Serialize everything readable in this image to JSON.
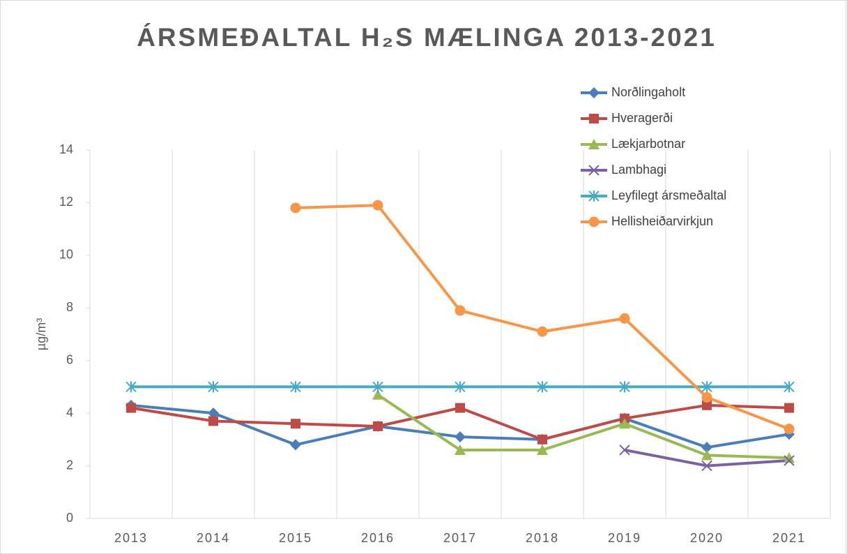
{
  "chart_data": {
    "type": "line",
    "title": "ÁRSMEÐALTAL H₂S MÆLINGA 2013-2021",
    "y_label": "µg/m³",
    "categories": [
      "2013",
      "2014",
      "2015",
      "2016",
      "2017",
      "2018",
      "2019",
      "2020",
      "2021"
    ],
    "ylim": [
      0,
      14
    ],
    "yticks": [
      0,
      2,
      4,
      6,
      8,
      10,
      12,
      14
    ],
    "grid": true,
    "legend": "top-right",
    "series": [
      {
        "name": "Norðlingaholt",
        "color": "#4a7ebb",
        "marker": "diamond",
        "values": [
          4.3,
          4.0,
          2.8,
          3.5,
          3.1,
          3.0,
          3.8,
          2.7,
          3.2
        ]
      },
      {
        "name": "Hveragerði",
        "color": "#be4b48",
        "marker": "square",
        "values": [
          4.2,
          3.7,
          3.6,
          3.5,
          4.2,
          3.0,
          3.8,
          4.3,
          4.2
        ]
      },
      {
        "name": "Lækjarbotnar",
        "color": "#98b954",
        "marker": "triangle",
        "values": [
          null,
          null,
          null,
          4.7,
          2.6,
          2.6,
          3.6,
          2.4,
          2.3
        ]
      },
      {
        "name": "Lambhagi",
        "color": "#7d60a0",
        "marker": "x",
        "values": [
          null,
          null,
          null,
          null,
          null,
          null,
          2.6,
          2.0,
          2.2
        ]
      },
      {
        "name": "Leyfilegt ársmeðaltal",
        "color": "#46aac5",
        "marker": "star",
        "values": [
          5,
          5,
          5,
          5,
          5,
          5,
          5,
          5,
          5
        ]
      },
      {
        "name": "Hellisheiðarvirkjun",
        "color": "#f79646",
        "marker": "circle",
        "values": [
          null,
          null,
          11.8,
          11.9,
          7.9,
          7.1,
          7.6,
          4.6,
          3.4
        ]
      }
    ]
  }
}
